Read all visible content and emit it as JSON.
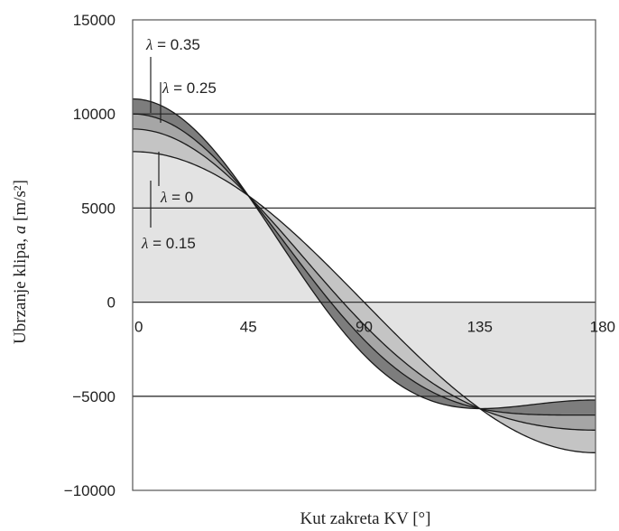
{
  "chart_data": {
    "type": "line",
    "title": "",
    "xlabel": "Kut zakreta KV [°]",
    "ylabel_prefix": "Ubrzanje klipa, ",
    "ylabel_symbol": "a",
    "ylabel_unit": " [m/s²]",
    "xlim": [
      0,
      180
    ],
    "ylim": [
      -10000,
      15000
    ],
    "x_ticks": [
      0,
      45,
      90,
      135,
      180
    ],
    "x_tick_labels": [
      "0",
      "45",
      "90",
      "135",
      "180"
    ],
    "y_ticks": [
      -10000,
      -5000,
      0,
      5000,
      10000,
      15000
    ],
    "y_tick_labels": [
      "−10000",
      "−5000",
      "0",
      "5000",
      "10000",
      "15000"
    ],
    "grid": "horizontal",
    "model": "a = A * (cos(phi) + lambda * cos(2*phi))",
    "amplitude": 8000,
    "series": [
      {
        "name": "λ = 0",
        "lambda": 0
      },
      {
        "name": "λ = 0.15",
        "lambda": 0.15
      },
      {
        "name": "λ = 0.25",
        "lambda": 0.25
      },
      {
        "name": "λ = 0.35",
        "lambda": 0.35
      }
    ],
    "annotations": [
      {
        "symbol": "λ",
        "text": " = 0.35"
      },
      {
        "symbol": "λ",
        "text": " = 0.25"
      },
      {
        "symbol": "λ",
        "text": " = 0"
      },
      {
        "symbol": "λ",
        "text": " = 0.15"
      }
    ]
  }
}
